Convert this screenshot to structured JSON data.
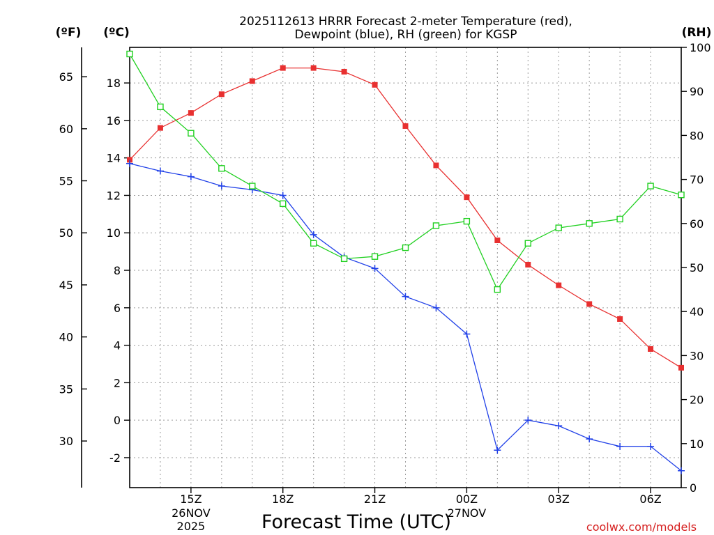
{
  "chart_data": {
    "type": "line",
    "title_line1": "2025112613 HRRR Forecast 2-meter Temperature (red),",
    "title_line2": "Dewpoint (blue), RH (green) for KGSP",
    "xlabel": "Forecast Time (UTC)",
    "credit": "coolwx.com/models",
    "units": {
      "fahrenheit": "(ºF)",
      "celsius": "(ºC)",
      "rh": "(RH)"
    },
    "x_hours": [
      13,
      14,
      15,
      16,
      17,
      18,
      19,
      20,
      21,
      22,
      23,
      24,
      25,
      26,
      27,
      28,
      29,
      30,
      31
    ],
    "x_ticks": [
      {
        "hour": 15,
        "label": "15Z",
        "sub1": "26NOV",
        "sub2": "2025"
      },
      {
        "hour": 18,
        "label": "18Z",
        "sub1": "",
        "sub2": ""
      },
      {
        "hour": 21,
        "label": "21Z",
        "sub1": "",
        "sub2": ""
      },
      {
        "hour": 24,
        "label": "00Z",
        "sub1": "27NOV",
        "sub2": ""
      },
      {
        "hour": 27,
        "label": "03Z",
        "sub1": "",
        "sub2": ""
      },
      {
        "hour": 30,
        "label": "06Z",
        "sub1": "",
        "sub2": ""
      }
    ],
    "xlim": [
      13,
      31
    ],
    "y_celsius": {
      "ylim": [
        -3.6,
        19.9
      ],
      "ticks": [
        -2,
        0,
        2,
        4,
        6,
        8,
        10,
        12,
        14,
        16,
        18
      ]
    },
    "y_fahrenheit": {
      "ticks": [
        30,
        35,
        40,
        45,
        50,
        55,
        60,
        65
      ]
    },
    "y_rh": {
      "ylim": [
        0,
        100
      ],
      "ticks": [
        0,
        10,
        20,
        30,
        40,
        50,
        60,
        70,
        80,
        90,
        100
      ]
    },
    "series": [
      {
        "name": "Temperature",
        "color": "#e83030",
        "marker": "filled-square",
        "axis": "celsius",
        "values": [
          13.9,
          15.6,
          16.4,
          17.4,
          18.1,
          18.8,
          18.8,
          18.6,
          17.9,
          15.7,
          13.6,
          11.9,
          9.6,
          8.3,
          7.2,
          6.2,
          5.4,
          3.8,
          2.8
        ]
      },
      {
        "name": "Dewpoint",
        "color": "#2040e8",
        "marker": "plus",
        "axis": "celsius",
        "values": [
          13.7,
          13.3,
          13.0,
          12.5,
          12.3,
          12.0,
          9.9,
          8.7,
          8.1,
          6.6,
          6.0,
          4.6,
          -1.6,
          0.0,
          -0.3,
          -1.0,
          -1.4,
          -1.4,
          -2.7
        ]
      },
      {
        "name": "RH",
        "color": "#20d020",
        "marker": "open-square",
        "axis": "rh",
        "values": [
          98.5,
          86.5,
          80.5,
          72.5,
          68.5,
          64.5,
          55.5,
          52,
          52.5,
          54.5,
          59.5,
          60.5,
          45,
          55.5,
          59,
          60,
          61,
          68.5,
          66.5
        ]
      }
    ]
  }
}
